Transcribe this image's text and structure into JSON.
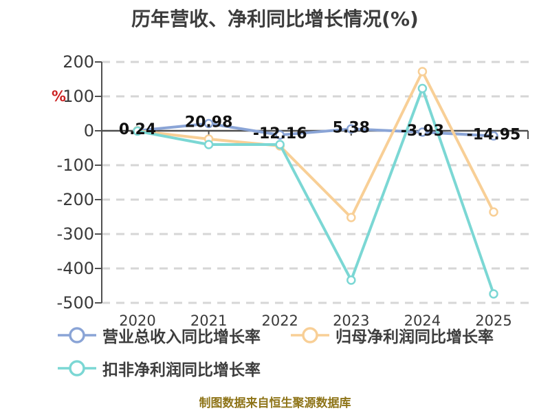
{
  "title": "历年营收、净利同比增长情况(%)",
  "source_note": "制图数据来自恒生聚源数据库",
  "y_axis_unit": "%",
  "colors": {
    "revenue_line": "#8AA4D6",
    "net_profit_line": "#F8CF96",
    "non_gaap_line": "#7BD7D4",
    "axis": "#4f4f4f",
    "grid": "#d6d6d6",
    "tick_text": "#3a3a3a",
    "data_label": "#111111",
    "unit_text": "#cc2222",
    "title_text": "#3c3c3c",
    "source_text": "#8e7418"
  },
  "chart_data": {
    "type": "line",
    "title": "历年营收、净利同比增长情况(%)",
    "categories": [
      "2020",
      "2021",
      "2022",
      "2023",
      "2024",
      "2025"
    ],
    "y_ticks": [
      "200",
      "100",
      "0",
      "-100",
      "-200",
      "-300",
      "-400",
      "-500"
    ],
    "ylim": [
      -500,
      200
    ],
    "ytick_step": 100,
    "grid": true,
    "legend_position": "bottom",
    "series": [
      {
        "name": "营业总收入同比增长率",
        "color": "#8AA4D6",
        "values": [
          0.24,
          20.98,
          -12.16,
          5.38,
          -3.93,
          -14.95
        ],
        "labels": [
          "0.24",
          "20.98",
          "-12.16",
          "5.38",
          "-3.93",
          "-14.95"
        ]
      },
      {
        "name": "归母净利润同比增长率",
        "color": "#F8CF96",
        "values": [
          0,
          -24,
          -44,
          -252,
          172,
          -236
        ],
        "labels": null
      },
      {
        "name": "扣非净利润同比增长率",
        "color": "#7BD7D4",
        "values": [
          -1,
          -40,
          -40,
          -434,
          123,
          -474
        ],
        "labels": null
      }
    ]
  }
}
